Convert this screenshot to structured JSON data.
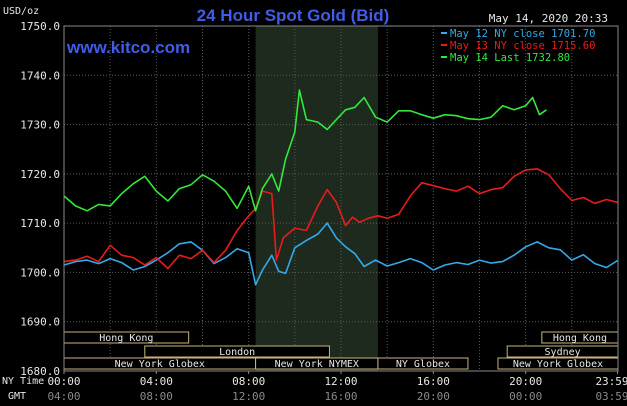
{
  "chart_data": {
    "type": "line",
    "title": "24 Hour Spot Gold (Bid)",
    "source": "www.kitco.com",
    "timestamp": "May 14, 2020 20:33",
    "ylabel": "USD/oz",
    "ylim": [
      1680,
      1750
    ],
    "y_ticks": [
      "1680.0",
      "1690.0",
      "1700.0",
      "1710.0",
      "1720.0",
      "1730.0",
      "1740.0",
      "1750.0"
    ],
    "x_axis_label_ny": "NY Time",
    "x_axis_label_gmt": "GMT",
    "x_ticks_ny": [
      "00:00",
      "04:00",
      "08:00",
      "12:00",
      "16:00",
      "20:00",
      "23:59"
    ],
    "x_ticks_gmt": [
      "04:00",
      "08:00",
      "12:00",
      "16:00",
      "20:00",
      "00:00",
      "03:59"
    ],
    "x_hours": [
      0,
      4,
      8,
      12,
      16,
      20,
      23.98
    ],
    "highlight_hours": [
      8.3,
      13.6
    ],
    "series": [
      {
        "name": "May 12 NY close 1701.70",
        "color": "#33a9e8",
        "x": [
          0,
          0.5,
          1,
          1.5,
          2,
          2.5,
          3,
          3.5,
          4,
          4.5,
          5,
          5.5,
          6,
          6.5,
          7,
          7.5,
          8,
          8.3,
          8.6,
          9,
          9.3,
          9.6,
          10,
          10.5,
          11,
          11.4,
          11.8,
          12.2,
          12.6,
          13,
          13.5,
          14,
          14.5,
          15,
          15.5,
          16,
          16.5,
          17,
          17.5,
          18,
          18.5,
          19,
          19.5,
          20,
          20.5,
          21,
          21.5,
          22,
          22.5,
          23,
          23.5,
          23.98
        ],
        "values": [
          1701.5,
          1702.2,
          1702.5,
          1701.8,
          1702.8,
          1702.0,
          1700.5,
          1701.2,
          1702.5,
          1704.0,
          1705.8,
          1706.2,
          1704.5,
          1701.8,
          1703.0,
          1704.8,
          1704.0,
          1697.5,
          1700.5,
          1703.5,
          1700.2,
          1699.8,
          1705.0,
          1706.5,
          1707.8,
          1710.0,
          1707.0,
          1705.2,
          1703.8,
          1701.2,
          1702.5,
          1701.3,
          1702.0,
          1702.8,
          1702.0,
          1700.5,
          1701.5,
          1702.0,
          1701.6,
          1702.5,
          1701.9,
          1702.2,
          1703.5,
          1705.2,
          1706.2,
          1705.0,
          1704.6,
          1702.5,
          1703.6,
          1701.8,
          1701.0,
          1702.4
        ]
      },
      {
        "name": "May 13 NY close 1715.60",
        "color": "#e81c1c",
        "x": [
          0,
          0.5,
          1,
          1.5,
          2,
          2.5,
          3,
          3.5,
          4,
          4.5,
          5,
          5.5,
          6,
          6.5,
          7,
          7.5,
          8,
          8.3,
          8.6,
          9,
          9.2,
          9.5,
          10,
          10.5,
          11,
          11.4,
          11.8,
          12.2,
          12.5,
          12.8,
          13.2,
          13.6,
          14,
          14.5,
          15,
          15.5,
          16,
          16.5,
          17,
          17.5,
          18,
          18.5,
          19,
          19.5,
          20,
          20.5,
          21,
          21.5,
          22,
          22.5,
          23,
          23.5,
          23.98
        ],
        "values": [
          1702.2,
          1702.5,
          1703.3,
          1702.2,
          1705.5,
          1703.5,
          1703.0,
          1701.5,
          1703.0,
          1700.8,
          1703.5,
          1702.8,
          1704.5,
          1702.0,
          1704.5,
          1708.5,
          1711.5,
          1713.0,
          1716.5,
          1716.0,
          1702.5,
          1707.0,
          1709.0,
          1708.5,
          1713.5,
          1716.8,
          1714.2,
          1709.5,
          1711.2,
          1710.2,
          1711.0,
          1711.5,
          1711.0,
          1711.8,
          1715.5,
          1718.2,
          1717.6,
          1717.0,
          1716.5,
          1717.5,
          1716.0,
          1716.8,
          1717.2,
          1719.5,
          1720.8,
          1721.0,
          1719.8,
          1717.0,
          1714.6,
          1715.2,
          1714.0,
          1714.8,
          1714.2
        ]
      },
      {
        "name": "May 14 Last 1732.80",
        "color": "#33e83a",
        "x": [
          0,
          0.5,
          1,
          1.5,
          2,
          2.5,
          3,
          3.5,
          4,
          4.5,
          5,
          5.5,
          6,
          6.5,
          7,
          7.5,
          8,
          8.3,
          8.6,
          9,
          9.3,
          9.6,
          10,
          10.2,
          10.5,
          11,
          11.4,
          11.8,
          12.2,
          12.6,
          13,
          13.5,
          14,
          14.5,
          15,
          15.5,
          16,
          16.5,
          17,
          17.5,
          18,
          18.5,
          19,
          19.5,
          20,
          20.3,
          20.6,
          20.9
        ],
        "values": [
          1715.5,
          1713.5,
          1712.5,
          1713.8,
          1713.5,
          1716.0,
          1718.0,
          1719.5,
          1716.5,
          1714.5,
          1717.0,
          1717.8,
          1719.8,
          1718.5,
          1716.5,
          1713.0,
          1717.5,
          1712.5,
          1717.0,
          1720.0,
          1716.5,
          1723.0,
          1728.5,
          1737.0,
          1731.0,
          1730.5,
          1729.0,
          1731.0,
          1733.0,
          1733.5,
          1735.5,
          1731.5,
          1730.5,
          1732.8,
          1732.8,
          1732.0,
          1731.3,
          1732.0,
          1731.8,
          1731.2,
          1731.0,
          1731.5,
          1733.8,
          1733.0,
          1733.8,
          1735.5,
          1732.0,
          1733.0
        ]
      }
    ],
    "sessions": [
      {
        "label": "Hong Kong",
        "start": 0,
        "end": 5.4,
        "row": 0
      },
      {
        "label": "London",
        "start": 3.5,
        "end": 11.5,
        "row": 1
      },
      {
        "label": "New York Globex",
        "start": 0,
        "end": 8.3,
        "row": 2
      },
      {
        "label": "New York NYMEX",
        "start": 8.3,
        "end": 13.6,
        "row": 2
      },
      {
        "label": "NY Globex",
        "start": 13.6,
        "end": 17.5,
        "row": 2
      },
      {
        "label": "Hong Kong",
        "start": 20.7,
        "end": 24,
        "row": 0
      },
      {
        "label": "Sydney",
        "start": 19.2,
        "end": 24,
        "row": 1
      },
      {
        "label": "New York Globex",
        "start": 18.8,
        "end": 24,
        "row": 2
      }
    ]
  }
}
